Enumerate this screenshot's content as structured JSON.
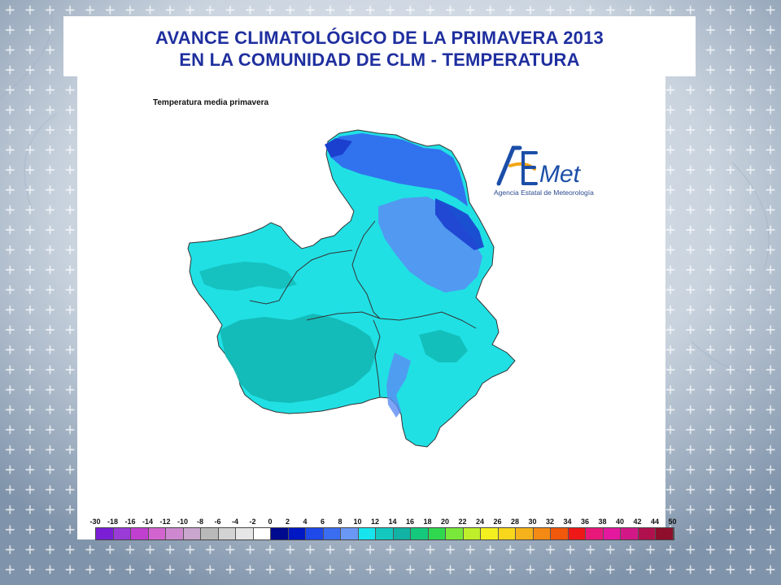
{
  "slide": {
    "title_line1": "AVANCE CLIMATOLÓGICO DE LA PRIMAVERA 2013",
    "title_line2": "EN LA COMUNIDAD DE CLM - TEMPERATURA"
  },
  "map": {
    "title": "Temperatura media primavera",
    "region_colors": {
      "cyan": "#20e0e4",
      "teal": "#12b8b4",
      "light_blue": "#5b8cf3",
      "blue": "#3366ee",
      "dark_blue": "#1b3fcf"
    }
  },
  "logo": {
    "brand": "AEMet",
    "subtitle": "Agencia Estatal de Meteorología"
  },
  "legend": {
    "labels": [
      "-30",
      "-18",
      "-16",
      "-14",
      "-12",
      "-10",
      "-8",
      "-6",
      "-4",
      "-2",
      "0",
      "2",
      "4",
      "6",
      "8",
      "10",
      "12",
      "14",
      "16",
      "18",
      "20",
      "22",
      "24",
      "26",
      "28",
      "30",
      "32",
      "34",
      "36",
      "38",
      "40",
      "42",
      "44",
      "50"
    ],
    "colors": [
      "#7a1fd6",
      "#9a3bd8",
      "#c03fcf",
      "#d264cf",
      "#cd88cf",
      "#c9a6cd",
      "#b9b9b9",
      "#d3d3d3",
      "#e6e6e6",
      "#ffffff",
      "#000a8f",
      "#0018c4",
      "#1f49e8",
      "#3b6df0",
      "#6b98f5",
      "#18e4ee",
      "#14c8c0",
      "#12b2a4",
      "#14c87c",
      "#30d850",
      "#79e83a",
      "#bfee2a",
      "#f4f020",
      "#f8d61c",
      "#f6b21a",
      "#f48a14",
      "#f0580c",
      "#ee1818",
      "#e8187a",
      "#e4189e",
      "#d21886",
      "#b0104e",
      "#8e0e2c"
    ]
  }
}
